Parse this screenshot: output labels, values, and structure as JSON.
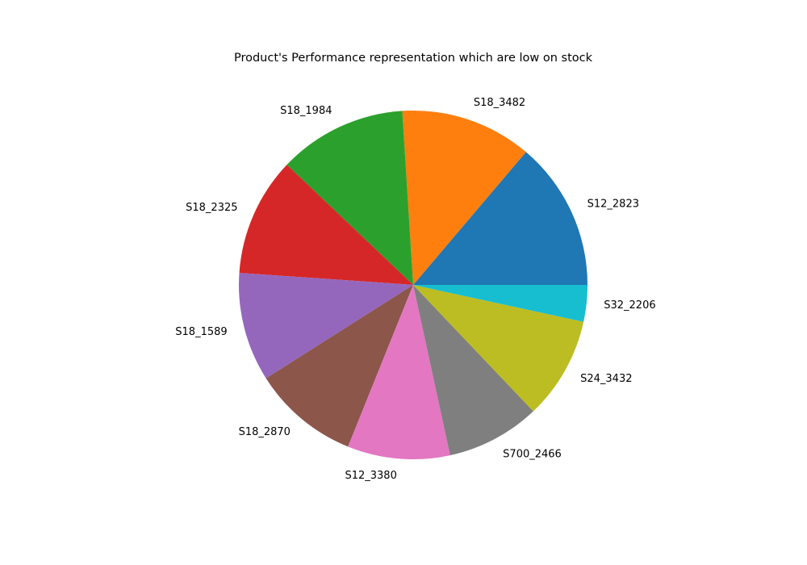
{
  "chart_data": {
    "type": "pie",
    "title": "Product's Performance representation which are low on stock",
    "start_angle_deg": 0,
    "direction": "counterclockwise",
    "legend": "none",
    "slices": [
      {
        "label": "S12_2823",
        "value": 13.8,
        "color": "#1f77b4"
      },
      {
        "label": "S18_3482",
        "value": 12.2,
        "color": "#ff7f0e"
      },
      {
        "label": "S18_1984",
        "value": 11.9,
        "color": "#2ca02c"
      },
      {
        "label": "S18_2325",
        "value": 11.0,
        "color": "#d62728"
      },
      {
        "label": "S18_1589",
        "value": 10.1,
        "color": "#9467bd"
      },
      {
        "label": "S18_2870",
        "value": 9.9,
        "color": "#8c564b"
      },
      {
        "label": "S12_3380",
        "value": 9.5,
        "color": "#e377c2"
      },
      {
        "label": "S700_2466",
        "value": 8.7,
        "color": "#7f7f7f"
      },
      {
        "label": "S24_3432",
        "value": 9.5,
        "color": "#bcbd22"
      },
      {
        "label": "S32_2206",
        "value": 3.4,
        "color": "#17becf"
      }
    ]
  }
}
